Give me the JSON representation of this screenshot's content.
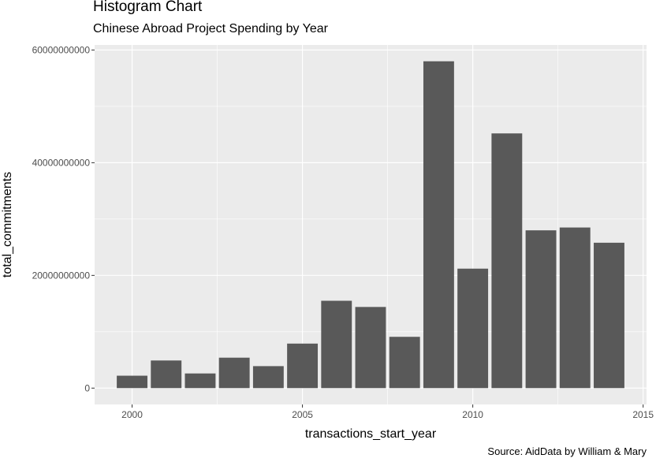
{
  "chart_data": {
    "type": "bar",
    "title": "Histogram Chart",
    "subtitle": "Chinese Abroad Project Spending by Year",
    "caption": "Source: AidData by William & Mary",
    "xlabel": "transactions_start_year",
    "ylabel": "total_commitments",
    "x": [
      2000,
      2001,
      2002,
      2003,
      2004,
      2005,
      2006,
      2007,
      2008,
      2009,
      2010,
      2011,
      2012,
      2013,
      2014
    ],
    "values": [
      2200000000,
      4900000000,
      2600000000,
      5400000000,
      3900000000,
      7900000000,
      15500000000,
      14400000000,
      9100000000,
      58000000000,
      21200000000,
      45200000000,
      28000000000,
      28500000000,
      25800000000
    ],
    "xlim": [
      1998.9,
      2015.1
    ],
    "ylim": [
      -2900000000,
      60900000000
    ],
    "x_ticks": [
      2000,
      2005,
      2010,
      2015
    ],
    "x_tick_labels": [
      "2000",
      "2005",
      "2010",
      "2015"
    ],
    "y_ticks": [
      0,
      20000000000,
      40000000000,
      60000000000
    ],
    "y_tick_labels": [
      "0",
      "20000000000",
      "40000000000",
      "60000000000"
    ],
    "bar_color": "#595959",
    "panel_color": "#ebebeb",
    "grid": true
  }
}
